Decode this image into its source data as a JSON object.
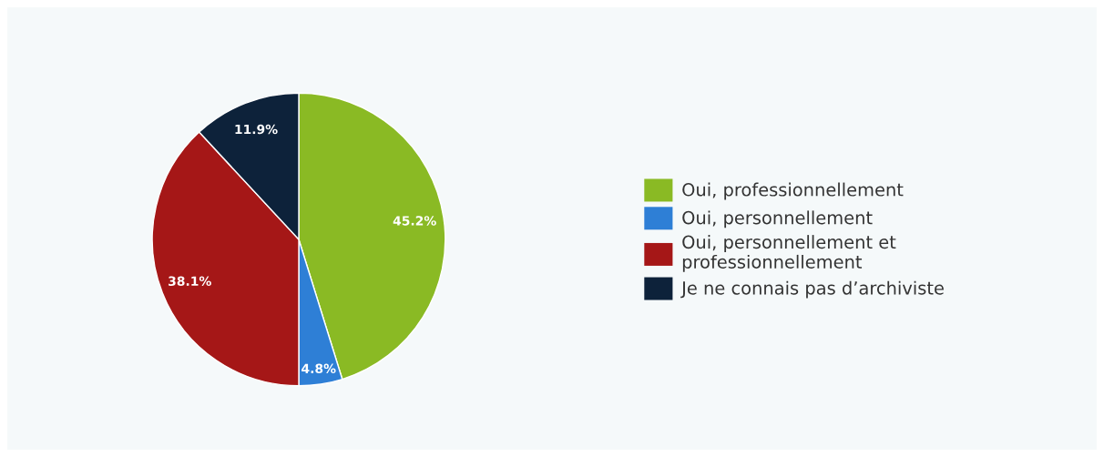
{
  "chart_data": {
    "type": "pie",
    "categories": [
      "Oui, professionnellement",
      "Oui, personnellement",
      "Oui, personnellement et\nprofessionnellement",
      "Je ne connais pas d’archiviste"
    ],
    "values": [
      45.2,
      4.8,
      38.1,
      11.9
    ],
    "colors": [
      "#8aba24",
      "#2e7fd6",
      "#a51717",
      "#0d223a"
    ],
    "value_labels": [
      "45.2%",
      "4.8%",
      "38.1%",
      "11.9%"
    ],
    "legend": "right"
  }
}
